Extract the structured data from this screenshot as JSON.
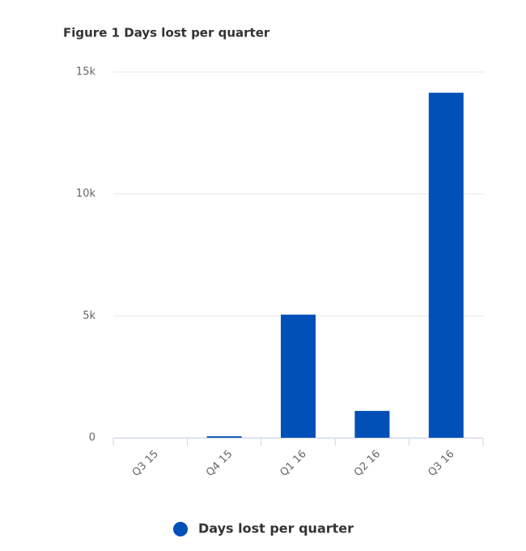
{
  "chart_data": {
    "type": "bar",
    "title": "Figure 1 Days lost per quarter",
    "categories": [
      "Q3 15",
      "Q4 15",
      "Q1 16",
      "Q2 16",
      "Q3 16"
    ],
    "series": [
      {
        "name": "Days lost per quarter",
        "color": "#0050b8",
        "values": [
          0,
          60,
          5050,
          1100,
          14150
        ]
      }
    ],
    "ylim": [
      0,
      15000
    ],
    "yticks": [
      0,
      {
        "value": 5000,
        "label": "5k"
      },
      {
        "value": 10000,
        "label": "10k"
      },
      {
        "value": 15000,
        "label": "15k"
      }
    ],
    "grid": true,
    "legend": "bottom"
  }
}
